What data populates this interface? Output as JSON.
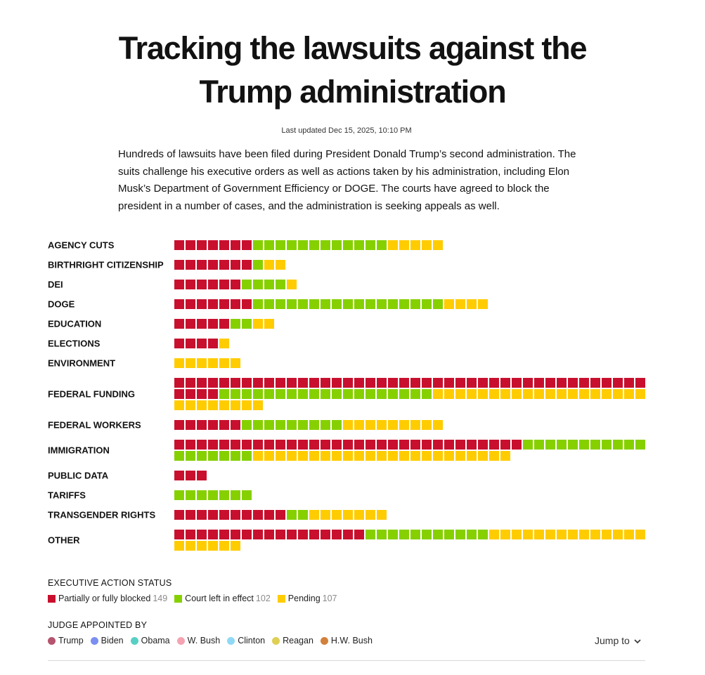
{
  "header": {
    "title_line1": "Tracking the lawsuits against the",
    "title_line2": "Trump administration",
    "updated": "Last updated Dec 15, 2025, 10:10 PM",
    "intro": "Hundreds of lawsuits have been filed during President Donald Trump’s second administration. The suits challenge his executive orders as well as actions taken by his administration, including Elon Musk’s Department of Government Efficiency or DOGE. The courts have agreed to block the president in a number of cases, and the administration is seeking appeals as well."
  },
  "chart_data": {
    "type": "waffle",
    "title": "Tracking the lawsuits against the Trump administration",
    "series_order": [
      "blocked",
      "left_in_effect",
      "pending"
    ],
    "colors": {
      "blocked": "#c8102e",
      "left_in_effect": "#86d000",
      "pending": "#ffcc00"
    },
    "max_per_row": 42,
    "categories": [
      {
        "label": "AGENCY CUTS",
        "blocked": 7,
        "left_in_effect": 12,
        "pending": 5
      },
      {
        "label": "BIRTHRIGHT CITIZENSHIP",
        "blocked": 7,
        "left_in_effect": 1,
        "pending": 2
      },
      {
        "label": "DEI",
        "blocked": 6,
        "left_in_effect": 4,
        "pending": 1
      },
      {
        "label": "DOGE",
        "blocked": 7,
        "left_in_effect": 17,
        "pending": 4
      },
      {
        "label": "EDUCATION",
        "blocked": 5,
        "left_in_effect": 2,
        "pending": 2
      },
      {
        "label": "ELECTIONS",
        "blocked": 4,
        "left_in_effect": 0,
        "pending": 1
      },
      {
        "label": "ENVIRONMENT",
        "blocked": 0,
        "left_in_effect": 0,
        "pending": 6
      },
      {
        "label": "FEDERAL FUNDING",
        "blocked": 46,
        "left_in_effect": 19,
        "pending": 27
      },
      {
        "label": "FEDERAL WORKERS",
        "blocked": 6,
        "left_in_effect": 9,
        "pending": 9
      },
      {
        "label": "IMMIGRATION",
        "blocked": 31,
        "left_in_effect": 18,
        "pending": 23
      },
      {
        "label": "PUBLIC DATA",
        "blocked": 3,
        "left_in_effect": 0,
        "pending": 0
      },
      {
        "label": "TARIFFS",
        "blocked": 0,
        "left_in_effect": 7,
        "pending": 0
      },
      {
        "label": "TRANSGENDER RIGHTS",
        "blocked": 10,
        "left_in_effect": 2,
        "pending": 7
      },
      {
        "label": "OTHER",
        "blocked": 17,
        "left_in_effect": 11,
        "pending": 20
      }
    ]
  },
  "legend": {
    "status_title": "EXECUTIVE ACTION STATUS",
    "status_items": [
      {
        "label": "Partially or fully blocked",
        "count": "149",
        "color": "#c8102e"
      },
      {
        "label": "Court left in effect",
        "count": "102",
        "color": "#86d000"
      },
      {
        "label": "Pending",
        "count": "107",
        "color": "#ffcc00"
      }
    ],
    "judge_title": "JUDGE APPOINTED BY",
    "judge_items": [
      {
        "label": "Trump",
        "color": "#b5546f"
      },
      {
        "label": "Biden",
        "color": "#7b8ff0"
      },
      {
        "label": "Obama",
        "color": "#58cfc4"
      },
      {
        "label": "W. Bush",
        "color": "#f4a3b3"
      },
      {
        "label": "Clinton",
        "color": "#8fd9f6"
      },
      {
        "label": "Reagan",
        "color": "#e0cf55"
      },
      {
        "label": "H.W. Bush",
        "color": "#d2813b"
      }
    ]
  },
  "footer": {
    "jump_label": "Jump to",
    "jump_icon": "chevron-down-icon"
  }
}
